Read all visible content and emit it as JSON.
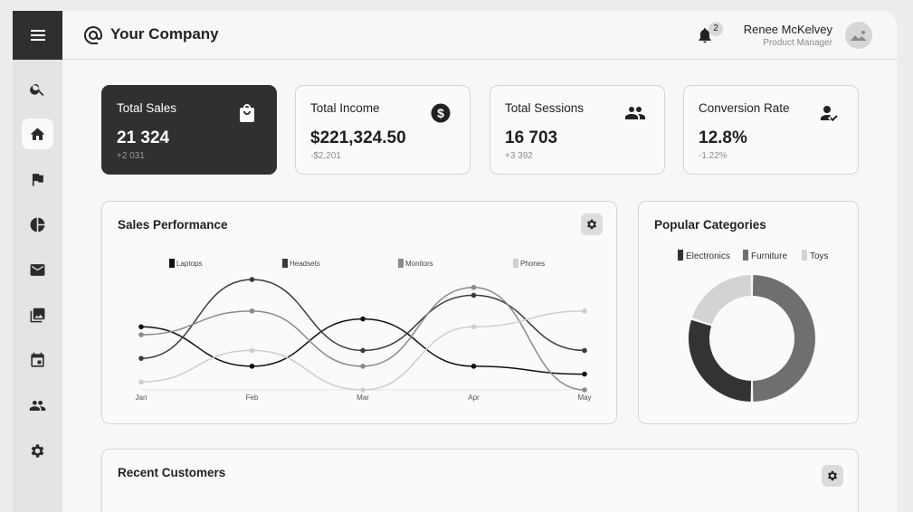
{
  "brand": {
    "name": "Your Company"
  },
  "header": {
    "notification_count": "2",
    "user_name": "Renee McKelvey",
    "user_role": "Product Manager"
  },
  "sidebar": {
    "items": [
      {
        "icon": "search-icon"
      },
      {
        "icon": "home-icon",
        "active": true
      },
      {
        "icon": "flag-icon"
      },
      {
        "icon": "pie-chart-icon"
      },
      {
        "icon": "mail-icon"
      },
      {
        "icon": "gallery-icon"
      },
      {
        "icon": "calendar-icon"
      },
      {
        "icon": "people-icon"
      },
      {
        "icon": "gear-icon"
      }
    ]
  },
  "stats": [
    {
      "title": "Total Sales",
      "value": "21 324",
      "delta": "+2 031",
      "icon": "shopping-bag-icon"
    },
    {
      "title": "Total Income",
      "value": "$221,324.50",
      "delta": "-$2,201",
      "icon": "dollar-icon"
    },
    {
      "title": "Total Sessions",
      "value": "16 703",
      "delta": "+3 392",
      "icon": "people-icon"
    },
    {
      "title": "Conversion Rate",
      "value": "12.8%",
      "delta": "-1.22%",
      "icon": "person-check-icon"
    }
  ],
  "sales_panel": {
    "title": "Sales Performance"
  },
  "categories_panel": {
    "title": "Popular Categories"
  },
  "customers_panel": {
    "title": "Recent Customers"
  },
  "chart_data": [
    {
      "type": "line",
      "title": "Sales Performance",
      "x": [
        "Jan",
        "Feb",
        "Mar",
        "Apr",
        "May"
      ],
      "series": [
        {
          "name": "Laptops",
          "color": "#111111",
          "values": [
            8,
            3,
            9,
            3,
            2
          ]
        },
        {
          "name": "Headsets",
          "color": "#3a3a3a",
          "values": [
            4,
            14,
            5,
            12,
            5
          ]
        },
        {
          "name": "Monitors",
          "color": "#8a8a8a",
          "values": [
            7,
            10,
            3,
            13,
            0
          ]
        },
        {
          "name": "Phones",
          "color": "#cdcdcd",
          "values": [
            1,
            5,
            0,
            8,
            10
          ]
        }
      ],
      "ylim": [
        0,
        14
      ],
      "legend": "top"
    },
    {
      "type": "pie",
      "title": "Popular Categories",
      "categories": [
        "Electronics",
        "Furniture",
        "Toys"
      ],
      "values": [
        30,
        50,
        20
      ],
      "colors": [
        "#333333",
        "#6f6f6f",
        "#d3d3d3"
      ],
      "legend": "top"
    }
  ]
}
